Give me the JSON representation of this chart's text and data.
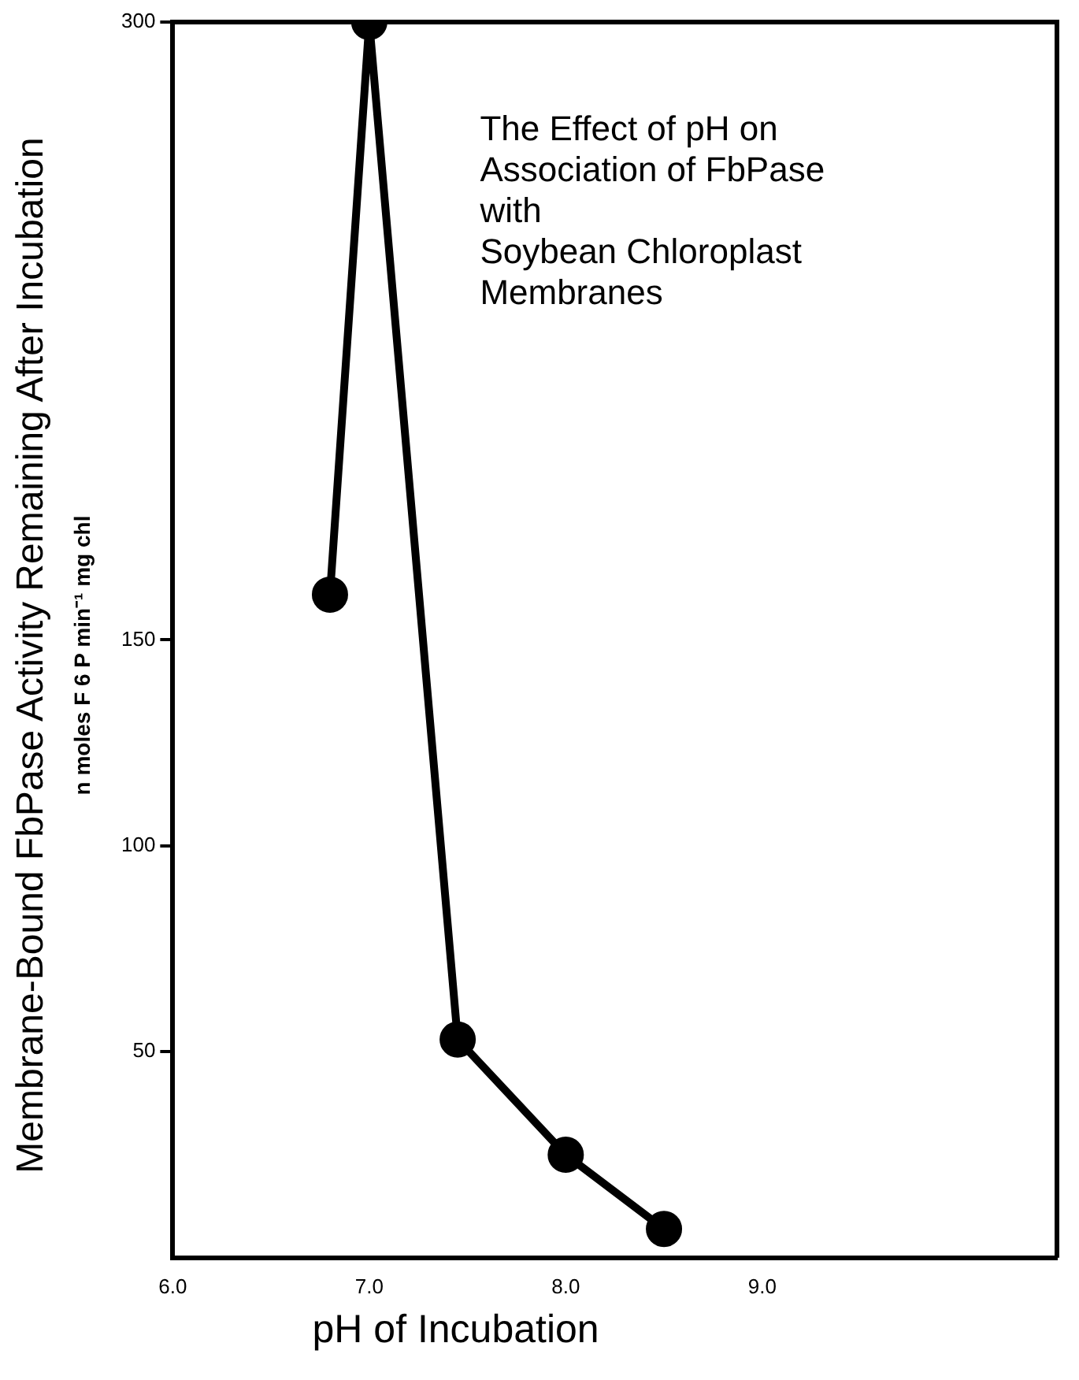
{
  "chart_data": {
    "type": "line",
    "title": "The Effect of pH on\nAssociation of FbPase\nwith\nSoybean Chloroplast\nMembranes",
    "xlabel": "pH of Incubation",
    "ylabel": "Membrane-Bound FbPase Activity Remaining After Incubation\nn moles F 6 P min⁻¹ mg chl",
    "x": [
      6.8,
      7.0,
      7.45,
      8.0,
      8.5
    ],
    "series": [
      {
        "color": "#000000",
        "values": [
          161,
          300,
          53,
          25,
          7
        ]
      }
    ],
    "xlim": [
      6.0,
      10.5
    ],
    "xticks": [
      {
        "value": 6,
        "label": "6.0"
      },
      {
        "value": 7,
        "label": "7.0"
      },
      {
        "value": 8,
        "label": "8.0"
      },
      {
        "value": 9,
        "label": "9.0"
      }
    ],
    "ylim": [
      0,
      300
    ],
    "yticks": [
      50,
      100,
      150,
      300
    ],
    "grid": false,
    "legend": false,
    "marker": "circle",
    "line_style": "solid"
  }
}
